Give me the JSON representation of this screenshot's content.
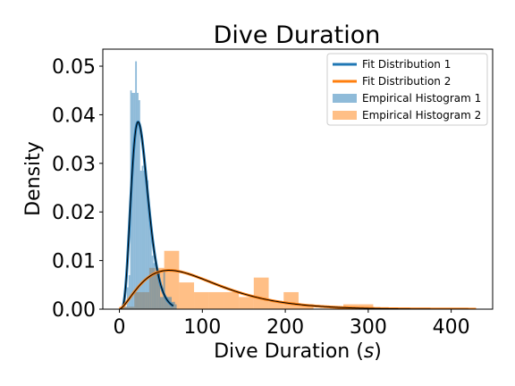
{
  "chart_data": {
    "type": "histogram",
    "title": "Dive Duration",
    "xlabel": "Dive Duration (s)",
    "ylabel": "Density",
    "xlim": [
      -20,
      450
    ],
    "ylim": [
      0,
      0.0535
    ],
    "xticks": [
      0,
      100,
      200,
      300,
      400
    ],
    "xtick_labels": [
      "0",
      "100",
      "200",
      "300",
      "400"
    ],
    "yticks": [
      0.0,
      0.01,
      0.02,
      0.03,
      0.04,
      0.05
    ],
    "ytick_labels": [
      "0.00",
      "0.01",
      "0.02",
      "0.03",
      "0.04",
      "0.05"
    ],
    "grid": false,
    "legend_position": "top-right",
    "histograms": [
      {
        "name": "Empirical Histogram 1",
        "color": "#1f77b4",
        "alpha": 0.5,
        "bins": [
          [
            5,
            9,
            0.0005
          ],
          [
            9,
            11,
            0.0045
          ],
          [
            11,
            13,
            0.007
          ],
          [
            13,
            15,
            0.045
          ],
          [
            15,
            17,
            0.0445
          ],
          [
            17,
            19,
            0.0445
          ],
          [
            19,
            21,
            0.051
          ],
          [
            21,
            23,
            0.0445
          ],
          [
            23,
            25,
            0.043
          ],
          [
            25,
            27,
            0.0285
          ],
          [
            27,
            29,
            0.0295
          ],
          [
            29,
            31,
            0.0285
          ],
          [
            31,
            33,
            0.0285
          ],
          [
            33,
            35,
            0.0265
          ],
          [
            35,
            37,
            0.0195
          ],
          [
            37,
            39,
            0.0175
          ],
          [
            39,
            41,
            0.011
          ],
          [
            41,
            43,
            0.0095
          ],
          [
            43,
            45,
            0.0075
          ],
          [
            45,
            47,
            0.008
          ],
          [
            47,
            49,
            0.008
          ],
          [
            49,
            51,
            0.0025
          ],
          [
            51,
            53,
            0.0025
          ],
          [
            53,
            55,
            0.008
          ],
          [
            55,
            57,
            0.002
          ],
          [
            57,
            59,
            0.0025
          ],
          [
            59,
            61,
            0.0025
          ],
          [
            61,
            63,
            0.0025
          ],
          [
            63,
            65,
            0.0015
          ],
          [
            65,
            67,
            0.0015
          ],
          [
            67,
            69,
            0.001
          ]
        ]
      },
      {
        "name": "Empirical Histogram 2",
        "color": "#ff7f0e",
        "alpha": 0.5,
        "bins": [
          [
            0,
            18,
            0.0005
          ],
          [
            18,
            36,
            0.0035
          ],
          [
            36,
            54,
            0.0085
          ],
          [
            54,
            72,
            0.012
          ],
          [
            72,
            90,
            0.0055
          ],
          [
            90,
            108,
            0.0035
          ],
          [
            108,
            126,
            0.0035
          ],
          [
            126,
            144,
            0.0035
          ],
          [
            144,
            162,
            0.0025
          ],
          [
            162,
            180,
            0.0065
          ],
          [
            180,
            198,
            0.0015
          ],
          [
            198,
            216,
            0.0035
          ],
          [
            216,
            234,
            0.001
          ],
          [
            234,
            252,
            0.0
          ],
          [
            252,
            270,
            0.0
          ],
          [
            270,
            288,
            0.001
          ],
          [
            288,
            306,
            0.001
          ],
          [
            306,
            324,
            0.0
          ],
          [
            324,
            342,
            0.0
          ],
          [
            342,
            360,
            0.0
          ],
          [
            360,
            378,
            0.0
          ],
          [
            378,
            396,
            0.0
          ],
          [
            396,
            414,
            0.0
          ],
          [
            414,
            432,
            0.0
          ]
        ]
      }
    ],
    "fits": [
      {
        "name": "Fit Distribution 1",
        "color": "#1f77b4",
        "distribution": "gamma",
        "shape": 5.9,
        "scale": 4.6,
        "x_range": [
          0,
          65
        ]
      },
      {
        "name": "Fit Distribution 2",
        "color": "#ff7f0e",
        "distribution": "gamma",
        "shape": 2.6,
        "scale": 37.5,
        "x_range": [
          0,
          430
        ]
      }
    ],
    "legend": [
      {
        "label": "Fit Distribution 1",
        "kind": "line",
        "color": "#1f77b4"
      },
      {
        "label": "Fit Distribution 2",
        "kind": "line",
        "color": "#ff7f0e"
      },
      {
        "label": "Empirical Histogram 1",
        "kind": "patch",
        "color": "#1f77b4"
      },
      {
        "label": "Empirical Histogram 2",
        "kind": "patch",
        "color": "#ff7f0e"
      }
    ]
  }
}
